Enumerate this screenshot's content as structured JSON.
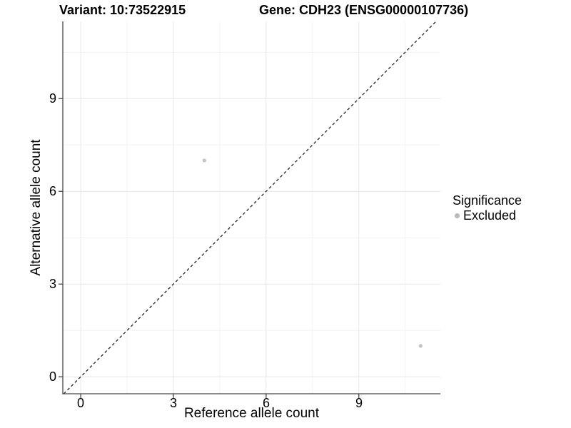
{
  "figure": {
    "title_left": "Variant: 10:73522915",
    "title_right": "Gene: CDH23 (ENSG00000107736)"
  },
  "chart_data": {
    "type": "scatter",
    "title": "Variant: 10:73522915 / Gene: CDH23 (ENSG00000107736)",
    "xlabel": "Reference allele count",
    "ylabel": "Alternative allele count",
    "xlim": [
      -0.58,
      11.64
    ],
    "ylim": [
      -0.55,
      11.5
    ],
    "x_ticks": [
      0,
      3,
      6,
      9
    ],
    "y_ticks": [
      0,
      3,
      6,
      9
    ],
    "x_minor_ticks": [
      1.5,
      4.5,
      7.5,
      10.5
    ],
    "y_minor_ticks": [
      1.5,
      4.5,
      7.5,
      10.5
    ],
    "grid": true,
    "reference_line": {
      "type": "identity_y_equals_x",
      "style": "dashed",
      "color": "#111111"
    },
    "series": [
      {
        "name": "Excluded",
        "color": "#c2c2c2",
        "points": [
          {
            "x": 4,
            "y": 7
          },
          {
            "x": 11,
            "y": 1
          }
        ]
      }
    ],
    "legend": {
      "title": "Significance",
      "position": "right",
      "items": [
        {
          "label": "Excluded",
          "color": "#b8b8b8"
        }
      ]
    },
    "colors": {
      "axis_line": "#464646",
      "grid_major": "#e7e7e7",
      "grid_minor": "#f2f2f2",
      "background": "#ffffff"
    }
  }
}
